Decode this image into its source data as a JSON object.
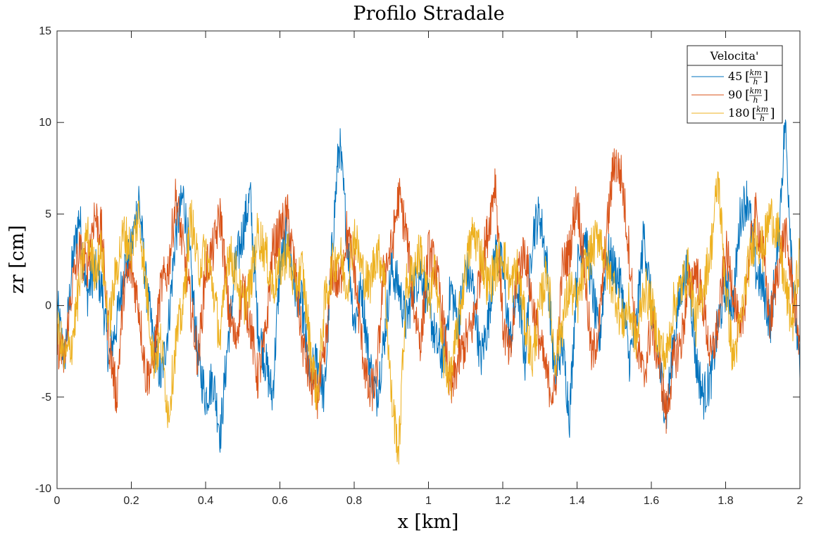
{
  "chart_data": {
    "type": "line",
    "title": "Profilo Stradale",
    "xlabel": "x [km]",
    "ylabel": "zr [cm]",
    "xlim": [
      0,
      2
    ],
    "ylim": [
      -10,
      15
    ],
    "xticks": [
      "0",
      "0.2",
      "0.4",
      "0.6",
      "0.8",
      "1",
      "1.2",
      "1.4",
      "1.6",
      "1.8",
      "2"
    ],
    "yticks": [
      "-10",
      "-5",
      "0",
      "5",
      "10",
      "15"
    ],
    "grid": false,
    "legend": {
      "title": "Velocita'",
      "placement": "top-right",
      "unit_numerator": "km",
      "unit_denominator": "h"
    },
    "series": [
      {
        "name": "45",
        "color": "#0072BD",
        "x": [
          0,
          0.02,
          0.04,
          0.06,
          0.08,
          0.1,
          0.12,
          0.14,
          0.16,
          0.18,
          0.2,
          0.22,
          0.24,
          0.26,
          0.28,
          0.3,
          0.32,
          0.34,
          0.36,
          0.38,
          0.4,
          0.42,
          0.44,
          0.46,
          0.48,
          0.5,
          0.52,
          0.54,
          0.56,
          0.58,
          0.6,
          0.62,
          0.64,
          0.66,
          0.68,
          0.7,
          0.72,
          0.74,
          0.76,
          0.78,
          0.8,
          0.82,
          0.84,
          0.86,
          0.88,
          0.9,
          0.92,
          0.94,
          0.96,
          0.98,
          1,
          1.02,
          1.04,
          1.06,
          1.08,
          1.1,
          1.12,
          1.14,
          1.16,
          1.18,
          1.2,
          1.22,
          1.24,
          1.26,
          1.28,
          1.3,
          1.32,
          1.34,
          1.36,
          1.38,
          1.4,
          1.42,
          1.44,
          1.46,
          1.48,
          1.5,
          1.52,
          1.54,
          1.56,
          1.58,
          1.6,
          1.62,
          1.64,
          1.66,
          1.68,
          1.7,
          1.72,
          1.74,
          1.76,
          1.78,
          1.8,
          1.82,
          1.84,
          1.86,
          1.88,
          1.9,
          1.92,
          1.94,
          1.96,
          1.98,
          2
        ],
        "y": [
          0,
          -3,
          2,
          5,
          0.5,
          2,
          1,
          -3,
          -1,
          2,
          3,
          6,
          1,
          -2,
          -4,
          -1,
          4,
          6,
          2,
          -3,
          -5,
          -4,
          -7,
          -2,
          2,
          4,
          6,
          -1,
          -3,
          -5,
          2,
          4,
          1,
          0,
          -4,
          -3,
          -5,
          3,
          9,
          4,
          -1,
          1,
          -3,
          -5,
          -2,
          2,
          1,
          -1,
          1,
          2,
          0,
          -2,
          -3,
          1,
          -1,
          2,
          1,
          -3,
          -1,
          3,
          2,
          -2,
          1,
          -3,
          4,
          5,
          2,
          -4,
          -2,
          -6,
          2,
          4,
          1,
          -2,
          3,
          2,
          1,
          -3,
          -1,
          4,
          0,
          -3,
          -6,
          -2,
          1,
          2,
          -3,
          -5,
          -4,
          -1,
          1,
          0,
          5,
          6,
          2,
          1,
          -1,
          3,
          10,
          2,
          -4
        ]
      },
      {
        "name": "90",
        "color": "#D95319",
        "x": [
          0,
          0.02,
          0.04,
          0.06,
          0.08,
          0.1,
          0.12,
          0.14,
          0.16,
          0.18,
          0.2,
          0.22,
          0.24,
          0.26,
          0.28,
          0.3,
          0.32,
          0.34,
          0.36,
          0.38,
          0.4,
          0.42,
          0.44,
          0.46,
          0.48,
          0.5,
          0.52,
          0.54,
          0.56,
          0.58,
          0.6,
          0.62,
          0.64,
          0.66,
          0.68,
          0.7,
          0.72,
          0.74,
          0.76,
          0.78,
          0.8,
          0.82,
          0.84,
          0.86,
          0.88,
          0.9,
          0.92,
          0.94,
          0.96,
          0.98,
          1,
          1.02,
          1.04,
          1.06,
          1.08,
          1.1,
          1.12,
          1.14,
          1.16,
          1.18,
          1.2,
          1.22,
          1.24,
          1.26,
          1.28,
          1.3,
          1.32,
          1.34,
          1.36,
          1.38,
          1.4,
          1.42,
          1.44,
          1.46,
          1.48,
          1.5,
          1.52,
          1.54,
          1.56,
          1.58,
          1.6,
          1.62,
          1.64,
          1.66,
          1.68,
          1.7,
          1.72,
          1.74,
          1.76,
          1.78,
          1.8,
          1.82,
          1.84,
          1.86,
          1.88,
          1.9,
          1.92,
          1.94,
          1.96,
          1.98,
          2
        ],
        "y": [
          -2,
          -3,
          1,
          3,
          2,
          5,
          4,
          -2,
          -5,
          1,
          2,
          0,
          -4,
          -3,
          1,
          2,
          6,
          3,
          0,
          -3,
          2,
          3,
          5,
          0,
          -2,
          1,
          -1,
          -4,
          -2,
          3,
          4,
          5,
          2,
          -2,
          -4,
          -5,
          -3,
          2,
          1,
          4,
          2,
          -2,
          -5,
          -4,
          2,
          3,
          6,
          4,
          0,
          -2,
          3,
          2,
          -1,
          -5,
          -3,
          -2,
          -1,
          2,
          4,
          7,
          -1,
          -3,
          2,
          3,
          0,
          -2,
          -4,
          -5,
          2,
          3,
          6,
          2,
          -3,
          -1,
          4,
          8,
          7,
          3,
          -2,
          -4,
          -1,
          -3,
          -6,
          -3,
          -2,
          1,
          2,
          0,
          -3,
          -1,
          3,
          1,
          -2,
          2,
          5,
          3,
          -1,
          2,
          4,
          1,
          -2
        ]
      },
      {
        "name": "180",
        "color": "#EDB120",
        "x": [
          0,
          0.02,
          0.04,
          0.06,
          0.08,
          0.1,
          0.12,
          0.14,
          0.16,
          0.18,
          0.2,
          0.22,
          0.24,
          0.26,
          0.28,
          0.3,
          0.32,
          0.34,
          0.36,
          0.38,
          0.4,
          0.42,
          0.44,
          0.46,
          0.48,
          0.5,
          0.52,
          0.54,
          0.56,
          0.58,
          0.6,
          0.62,
          0.64,
          0.66,
          0.68,
          0.7,
          0.72,
          0.74,
          0.76,
          0.78,
          0.8,
          0.82,
          0.84,
          0.86,
          0.88,
          0.9,
          0.92,
          0.94,
          0.96,
          0.98,
          1,
          1.02,
          1.04,
          1.06,
          1.08,
          1.1,
          1.12,
          1.14,
          1.16,
          1.18,
          1.2,
          1.22,
          1.24,
          1.26,
          1.28,
          1.3,
          1.32,
          1.34,
          1.36,
          1.38,
          1.4,
          1.42,
          1.44,
          1.46,
          1.48,
          1.5,
          1.52,
          1.54,
          1.56,
          1.58,
          1.6,
          1.62,
          1.64,
          1.66,
          1.68,
          1.7,
          1.72,
          1.74,
          1.76,
          1.78,
          1.8,
          1.82,
          1.84,
          1.86,
          1.88,
          1.9,
          1.92,
          1.94,
          1.96,
          1.98,
          2
        ],
        "y": [
          -1,
          -3,
          -2,
          1,
          4,
          2,
          3,
          -1,
          2,
          4,
          3,
          5,
          1,
          -3,
          -2,
          -6,
          -2,
          0,
          5,
          2,
          3,
          1,
          -2,
          3,
          2,
          0,
          1,
          4,
          3,
          1,
          2,
          3,
          1,
          2,
          -2,
          -5,
          0,
          2,
          3,
          1,
          4,
          2,
          1,
          3,
          2,
          -5,
          -8,
          1,
          2,
          3,
          0,
          2,
          -3,
          -4,
          -1,
          2,
          4,
          3,
          1,
          2,
          3,
          1,
          2,
          -1,
          -3,
          0,
          2,
          -3,
          -1,
          1,
          0,
          2,
          3,
          4,
          2,
          1,
          -1,
          0,
          -2,
          1,
          0,
          -2,
          -3,
          0,
          1,
          2,
          -1,
          1,
          3,
          7,
          1,
          -3,
          -1,
          2,
          4,
          3,
          5,
          4,
          1,
          -1,
          3
        ]
      }
    ]
  }
}
